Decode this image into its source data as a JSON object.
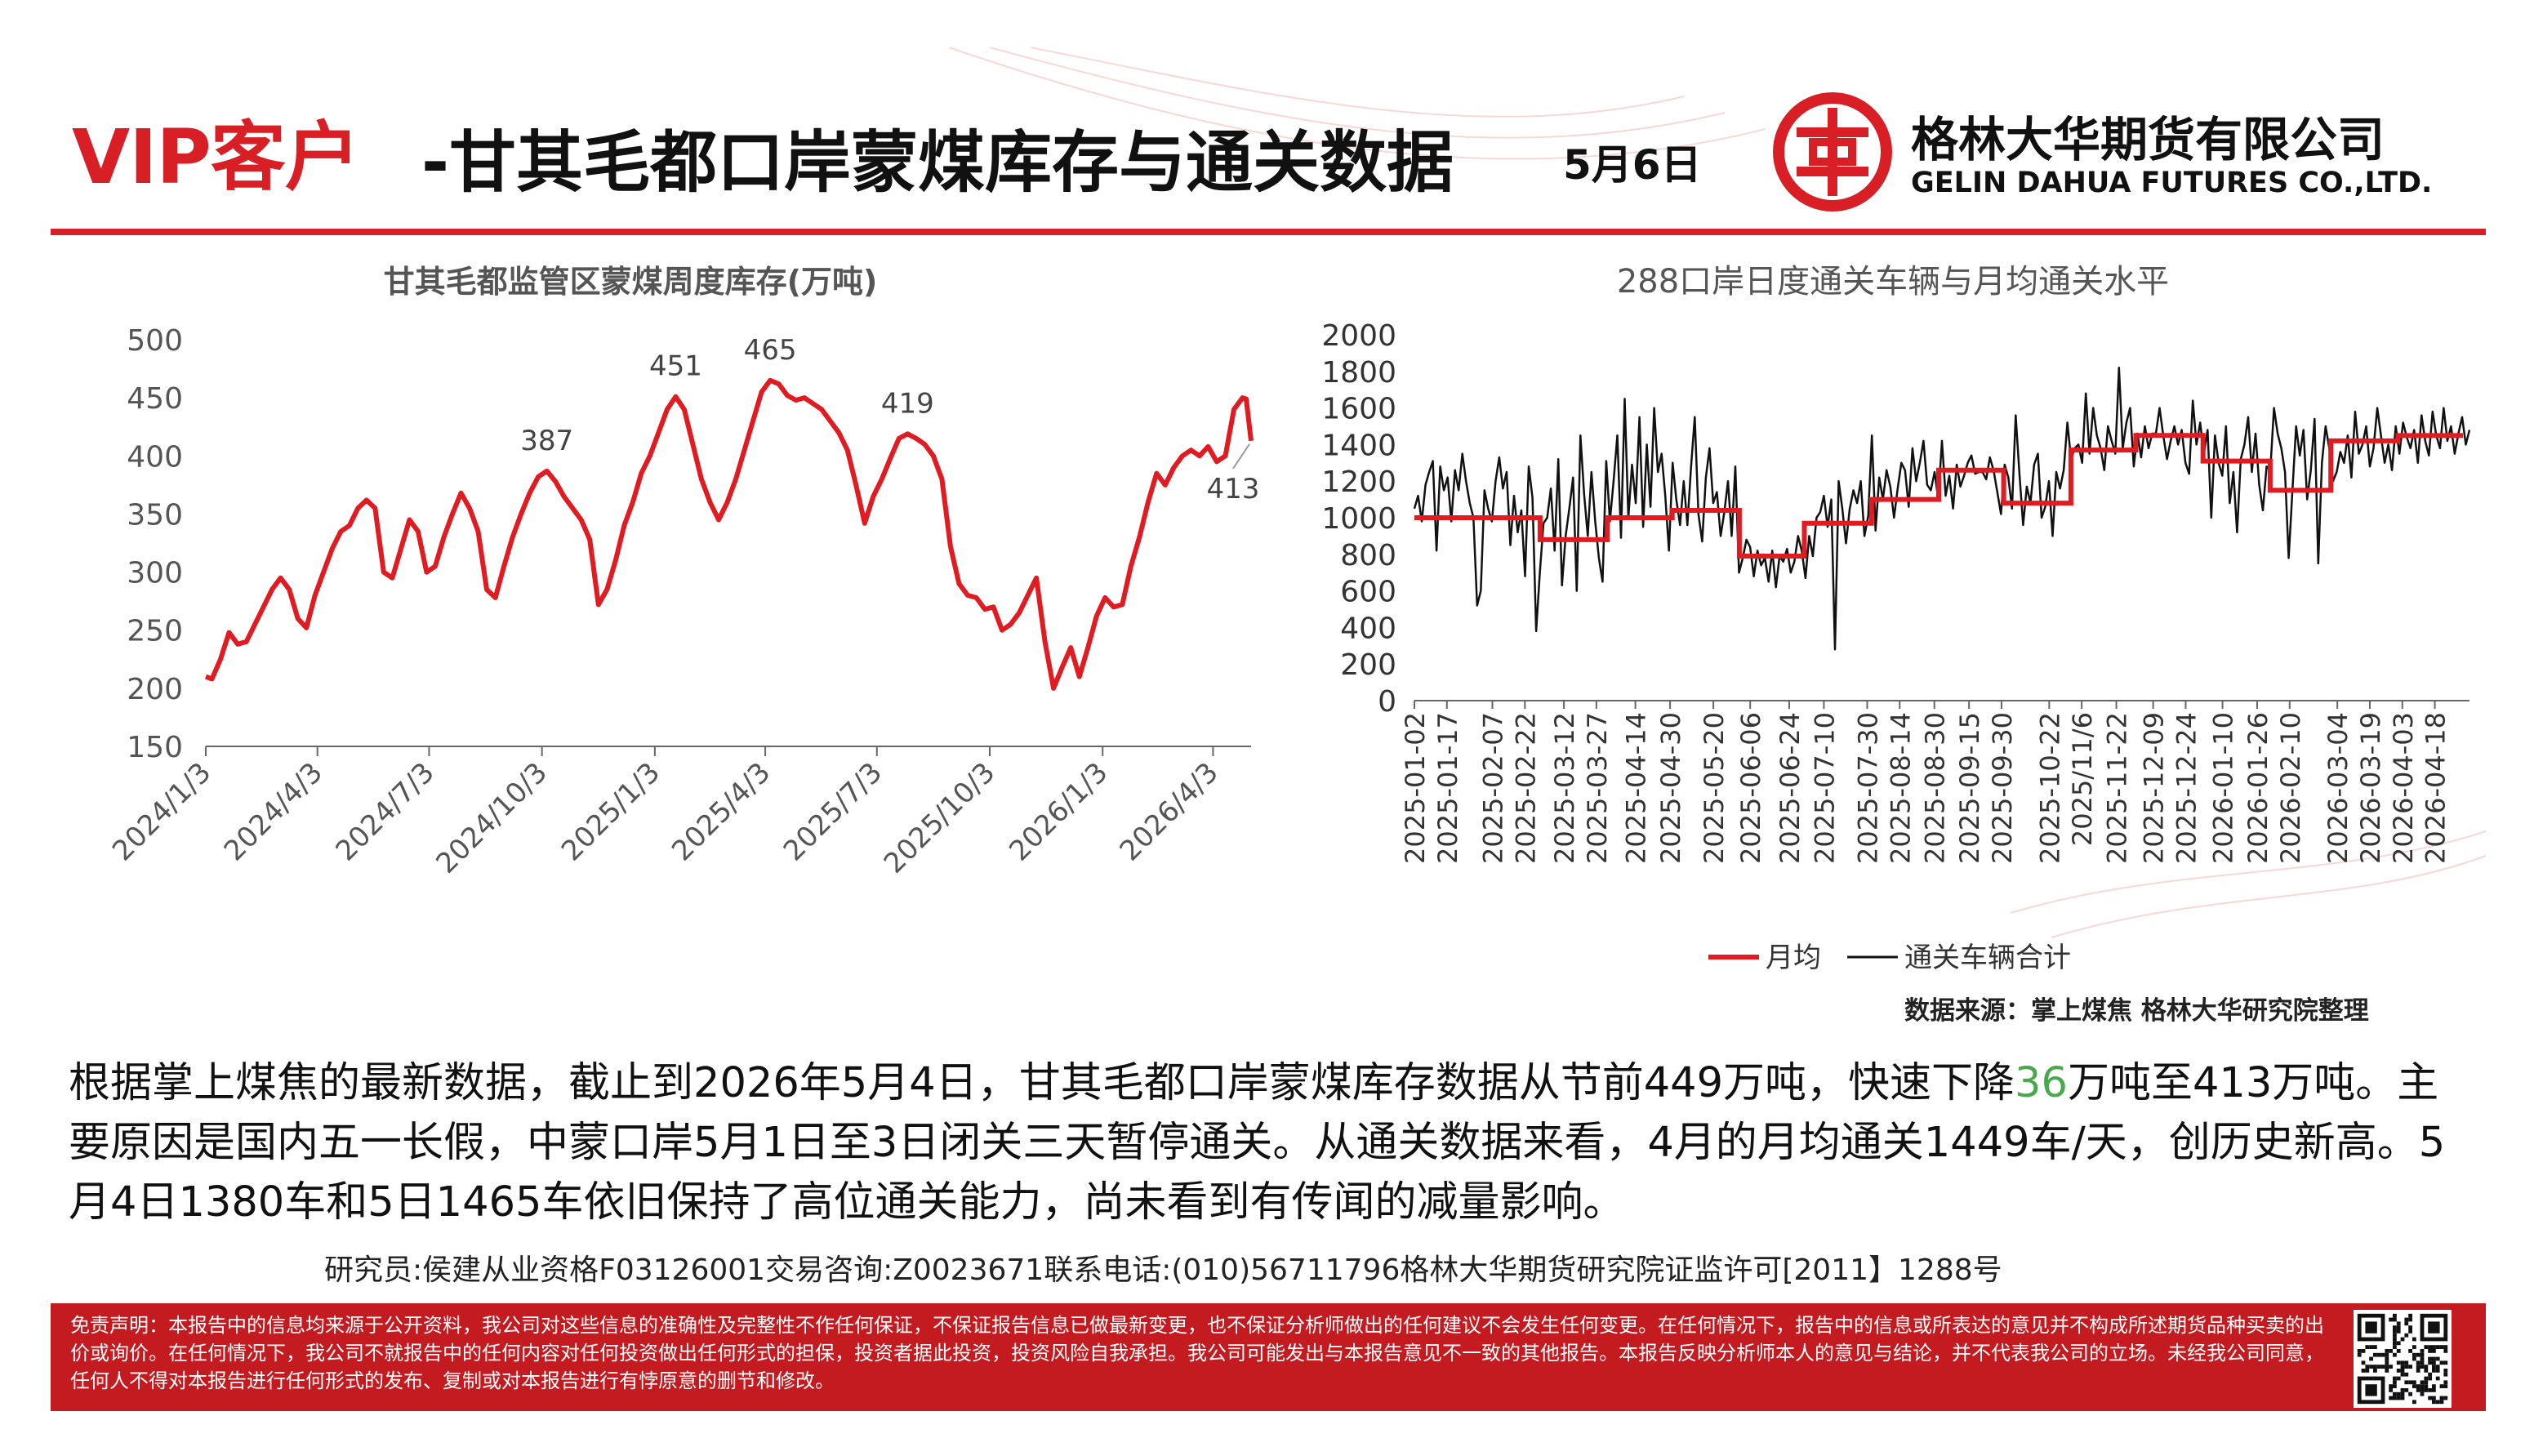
{
  "header": {
    "title_vip": "VIP客户",
    "title_main": "-甘其毛都口岸蒙煤库存与通关数据",
    "date": "5月6日",
    "company_cn": "格林大华期货有限公司",
    "company_en": "GELIN DAHUA FUTURES CO.,LTD.",
    "brand_color": "#d91f26"
  },
  "chart_data": [
    {
      "type": "line",
      "title": "甘其毛都监管区蒙煤周度库存(万吨)",
      "xlabel": "",
      "ylabel": "",
      "ylim": [
        150,
        500
      ],
      "yticks": [
        150,
        200,
        250,
        300,
        350,
        400,
        450,
        500
      ],
      "xlim": [
        "2024-01-03",
        "2026-05-04"
      ],
      "xticks": [
        "2024/1/3",
        "2024/4/3",
        "2024/7/3",
        "2024/10/3",
        "2025/1/3",
        "2025/4/3",
        "2025/7/3",
        "2025/10/3",
        "2026/1/3",
        "2026/4/3"
      ],
      "grid": false,
      "series": [
        {
          "color": "#e11b22",
          "points": [
            [
              "2024-01-03",
              210
            ],
            [
              "2024-01-08",
              208
            ],
            [
              "2024-01-15",
              225
            ],
            [
              "2024-01-22",
              248
            ],
            [
              "2024-01-29",
              238
            ],
            [
              "2024-02-05",
              240
            ],
            [
              "2024-02-12",
              255
            ],
            [
              "2024-02-19",
              270
            ],
            [
              "2024-02-26",
              285
            ],
            [
              "2024-03-04",
              295
            ],
            [
              "2024-03-11",
              285
            ],
            [
              "2024-03-18",
              260
            ],
            [
              "2024-03-25",
              252
            ],
            [
              "2024-04-01",
              280
            ],
            [
              "2024-04-08",
              300
            ],
            [
              "2024-04-15",
              320
            ],
            [
              "2024-04-22",
              335
            ],
            [
              "2024-04-29",
              340
            ],
            [
              "2024-05-06",
              355
            ],
            [
              "2024-05-13",
              362
            ],
            [
              "2024-05-20",
              355
            ],
            [
              "2024-05-27",
              300
            ],
            [
              "2024-06-03",
              295
            ],
            [
              "2024-06-10",
              320
            ],
            [
              "2024-06-17",
              345
            ],
            [
              "2024-06-24",
              335
            ],
            [
              "2024-07-01",
              300
            ],
            [
              "2024-07-08",
              305
            ],
            [
              "2024-07-15",
              330
            ],
            [
              "2024-07-22",
              350
            ],
            [
              "2024-07-29",
              368
            ],
            [
              "2024-08-05",
              355
            ],
            [
              "2024-08-12",
              335
            ],
            [
              "2024-08-19",
              285
            ],
            [
              "2024-08-26",
              278
            ],
            [
              "2024-09-02",
              305
            ],
            [
              "2024-09-09",
              330
            ],
            [
              "2024-09-16",
              350
            ],
            [
              "2024-09-23",
              368
            ],
            [
              "2024-09-30",
              382
            ],
            [
              "2024-10-07",
              387
            ],
            [
              "2024-10-14",
              378
            ],
            [
              "2024-10-21",
              365
            ],
            [
              "2024-10-28",
              355
            ],
            [
              "2024-11-04",
              345
            ],
            [
              "2024-11-11",
              328
            ],
            [
              "2024-11-18",
              272
            ],
            [
              "2024-11-25",
              285
            ],
            [
              "2024-12-02",
              310
            ],
            [
              "2024-12-09",
              340
            ],
            [
              "2024-12-16",
              360
            ],
            [
              "2024-12-23",
              385
            ],
            [
              "2024-12-30",
              400
            ],
            [
              "2025-01-06",
              420
            ],
            [
              "2025-01-13",
              440
            ],
            [
              "2025-01-20",
              451
            ],
            [
              "2025-01-27",
              440
            ],
            [
              "2025-02-03",
              410
            ],
            [
              "2025-02-10",
              380
            ],
            [
              "2025-02-17",
              360
            ],
            [
              "2025-02-24",
              345
            ],
            [
              "2025-03-03",
              360
            ],
            [
              "2025-03-10",
              380
            ],
            [
              "2025-03-17",
              405
            ],
            [
              "2025-03-24",
              430
            ],
            [
              "2025-03-31",
              455
            ],
            [
              "2025-04-07",
              465
            ],
            [
              "2025-04-14",
              462
            ],
            [
              "2025-04-21",
              452
            ],
            [
              "2025-04-28",
              448
            ],
            [
              "2025-05-05",
              450
            ],
            [
              "2025-05-12",
              445
            ],
            [
              "2025-05-19",
              440
            ],
            [
              "2025-05-26",
              430
            ],
            [
              "2025-06-02",
              420
            ],
            [
              "2025-06-09",
              405
            ],
            [
              "2025-06-16",
              375
            ],
            [
              "2025-06-23",
              342
            ],
            [
              "2025-06-30",
              365
            ],
            [
              "2025-07-07",
              380
            ],
            [
              "2025-07-14",
              398
            ],
            [
              "2025-07-21",
              415
            ],
            [
              "2025-07-28",
              419
            ],
            [
              "2025-08-04",
              415
            ],
            [
              "2025-08-11",
              410
            ],
            [
              "2025-08-18",
              400
            ],
            [
              "2025-08-25",
              380
            ],
            [
              "2025-09-01",
              322
            ],
            [
              "2025-09-08",
              290
            ],
            [
              "2025-09-15",
              280
            ],
            [
              "2025-09-22",
              278
            ],
            [
              "2025-09-29",
              268
            ],
            [
              "2025-10-06",
              270
            ],
            [
              "2025-10-13",
              250
            ],
            [
              "2025-10-20",
              255
            ],
            [
              "2025-10-27",
              265
            ],
            [
              "2025-11-03",
              280
            ],
            [
              "2025-11-10",
              295
            ],
            [
              "2025-11-17",
              240
            ],
            [
              "2025-11-24",
              200
            ],
            [
              "2025-12-01",
              218
            ],
            [
              "2025-12-08",
              235
            ],
            [
              "2025-12-15",
              210
            ],
            [
              "2025-12-22",
              235
            ],
            [
              "2025-12-29",
              262
            ],
            [
              "2026-01-05",
              278
            ],
            [
              "2026-01-12",
              270
            ],
            [
              "2026-01-19",
              272
            ],
            [
              "2026-01-26",
              305
            ],
            [
              "2026-02-02",
              330
            ],
            [
              "2026-02-09",
              360
            ],
            [
              "2026-02-16",
              385
            ],
            [
              "2026-02-23",
              375
            ],
            [
              "2026-03-02",
              390
            ],
            [
              "2026-03-09",
              400
            ],
            [
              "2026-03-16",
              405
            ],
            [
              "2026-03-23",
              400
            ],
            [
              "2026-03-30",
              408
            ],
            [
              "2026-04-06",
              395
            ],
            [
              "2026-04-13",
              400
            ],
            [
              "2026-04-20",
              440
            ],
            [
              "2026-04-27",
              450
            ],
            [
              "2026-04-30",
              449
            ],
            [
              "2026-05-04",
              413
            ]
          ]
        }
      ],
      "annotations": [
        {
          "x": "2024-10-07",
          "y": 387,
          "text": "387"
        },
        {
          "x": "2025-01-20",
          "y": 451,
          "text": "451"
        },
        {
          "x": "2025-04-07",
          "y": 465,
          "text": "465"
        },
        {
          "x": "2025-07-28",
          "y": 419,
          "text": "419"
        },
        {
          "x": "2026-05-04",
          "y": 413,
          "text": "413"
        }
      ]
    },
    {
      "type": "line",
      "title": "288口岸日度通关车辆与月均通关水平",
      "xlabel": "",
      "ylabel": "",
      "ylim": [
        0,
        2000
      ],
      "yticks": [
        0,
        200,
        400,
        600,
        800,
        1000,
        1200,
        1400,
        1600,
        1800,
        2000
      ],
      "xlim": [
        "2025-01-02",
        "2026-05-04"
      ],
      "xticks": [
        "2025-01-02",
        "2025-01-17",
        "2025-02-07",
        "2025-02-22",
        "2025-03-12",
        "2025-03-27",
        "2025-04-14",
        "2025-04-30",
        "2025-05-20",
        "2025-06-06",
        "2025-06-24",
        "2025-07-10",
        "2025-07-30",
        "2025-08-14",
        "2025-08-30",
        "2025-09-15",
        "2025-09-30",
        "2025-10-22",
        "2025/11/6",
        "2025-11-22",
        "2025-12-09",
        "2025-12-24",
        "2026-01-10",
        "2026-01-26",
        "2026-02-10",
        "2026-03-04",
        "2026-03-19",
        "2026-04-03",
        "2026-04-18"
      ],
      "legend": [
        "月均",
        "通关车辆合计"
      ],
      "legend_position": "bottom",
      "series": [
        {
          "name": "月均",
          "color": "#e11b22",
          "step": true,
          "points": [
            [
              "2025-01",
              1000
            ],
            [
              "2025-02",
              1000
            ],
            [
              "2025-03",
              880
            ],
            [
              "2025-04",
              1000
            ],
            [
              "2025-05",
              1040
            ],
            [
              "2025-06",
              790
            ],
            [
              "2025-07",
              970
            ],
            [
              "2025-08",
              1100
            ],
            [
              "2025-09",
              1260
            ],
            [
              "2025-10",
              1080
            ],
            [
              "2025-11",
              1370
            ],
            [
              "2025-12",
              1450
            ],
            [
              "2026-01",
              1310
            ],
            [
              "2026-02",
              1150
            ],
            [
              "2026-03",
              1420
            ],
            [
              "2026-04",
              1449
            ]
          ]
        },
        {
          "name": "通关车辆合计",
          "color": "#111111",
          "daily": [
            1050,
            1120,
            980,
            1180,
            1250,
            1310,
            820,
            1280,
            1150,
            1220,
            980,
            1260,
            1150,
            1350,
            1200,
            1080,
            1000,
            520,
            600,
            1150,
            1050,
            980,
            1200,
            1330,
            1160,
            1250,
            850,
            1120,
            920,
            1040,
            680,
            1280,
            1110,
            380,
            700,
            970,
            1000,
            1160,
            820,
            1320,
            630,
            900,
            1050,
            1220,
            600,
            1450,
            1130,
            900,
            1250,
            980,
            780,
            650,
            1310,
            980,
            1200,
            1450,
            890,
            1650,
            1000,
            1290,
            1080,
            1550,
            950,
            1400,
            1060,
            1600,
            1250,
            1350,
            1120,
            820,
            1300,
            1100,
            960,
            1200,
            960,
            1280,
            1550,
            1020,
            870,
            1220,
            1380,
            1080,
            1140,
            900,
            1030,
            1200,
            900,
            1280,
            700,
            780,
            880,
            840,
            680,
            820,
            740,
            780,
            650,
            820,
            620,
            790,
            760,
            830,
            700,
            760,
            900,
            820,
            670,
            900,
            790,
            1000,
            1030,
            1120,
            950,
            1100,
            280,
            1200,
            1050,
            860,
            1050,
            1150,
            1080,
            1200,
            900,
            1010,
            1450,
            930,
            1220,
            1100,
            1260,
            1170,
            1000,
            1160,
            1300,
            1260,
            1060,
            1380,
            1200,
            1300,
            1420,
            1180,
            1150,
            1250,
            1100,
            1420,
            1120,
            1230,
            1050,
            1290,
            1170,
            1230,
            1300,
            1340,
            1240,
            1250,
            1250,
            1210,
            1330,
            1260,
            1140,
            1020,
            1290,
            1220,
            1050,
            1560,
            1240,
            960,
            1170,
            1080,
            1290,
            1350,
            1000,
            1060,
            1200,
            900,
            1250,
            1160,
            1260,
            1520,
            1320,
            1380,
            1400,
            1300,
            1680,
            1350,
            1600,
            1450,
            1380,
            1260,
            1500,
            1420,
            1350,
            1820,
            1380,
            1520,
            1600,
            1280,
            1460,
            1330,
            1500,
            1380,
            1460,
            1460,
            1600,
            1450,
            1320,
            1420,
            1500,
            1400,
            1480,
            1300,
            1240,
            1640,
            1400,
            1520,
            1350,
            1480,
            1000,
            1450,
            1300,
            1230,
            1500,
            1080,
            1250,
            920,
            1320,
            1400,
            1550,
            1250,
            1460,
            1180,
            1040,
            1280,
            1260,
            1600,
            1460,
            1380,
            1250,
            780,
            1150,
            1500,
            1340,
            1480,
            1100,
            1260,
            1540,
            750,
            1300,
            1500,
            1380,
            1200,
            1250,
            1360,
            1300,
            1450,
            1220,
            1580,
            1350,
            1400,
            1500,
            1280,
            1380,
            1600,
            1450,
            1300,
            1400,
            1260,
            1500,
            1350,
            1520,
            1440,
            1380,
            1480,
            1300,
            1560,
            1420,
            1340,
            1580,
            1450,
            1380,
            1600,
            1420,
            1500,
            1350,
            1460,
            1550,
            1400,
            1480
          ]
        }
      ]
    }
  ],
  "source_note": "数据来源：掌上煤焦 格林大华研究院整理",
  "body": {
    "p1": "根据掌上煤焦的最新数据，截止到2026年5月4日，甘其毛都口岸蒙煤库存数据从节前449万吨，快速下降",
    "highlight": "36",
    "p2": "万吨至413万吨。主要原因是国内五一长假，中蒙口岸5月1日至3日闭关三天暂停通关。从通关数据来看，4月的月均通关1449车/天，创历史新高。5月4日1380车和5日1465车依旧保持了高位通关能力，尚未看到有传闻的减量影响。"
  },
  "researcher": "研究员:侯建从业资格F03126001交易咨询:Z0023671联系电话:(010)56711796格林大华期货研究院证监许可[2011】1288号",
  "disclaimer": "免责声明：本报告中的信息均来源于公开资料，我公司对这些信息的准确性及完整性不作任何保证，不保证报告信息已做最新变更，也不保证分析师做出的任何建议不会发生任何变更。在任何情况下，报告中的信息或所表达的意见并不构成所述期货品种买卖的出价或询价。在任何情况下，我公司不就报告中的任何内容对任何投资做出任何形式的担保，投资者据此投资，投资风险自我承担。我公司可能发出与本报告意见不一致的其他报告。本报告反映分析师本人的意见与结论，并不代表我公司的立场。未经我公司同意，任何人不得对本报告进行任何形式的发布、复制或对本报告进行有悖原意的删节和修改。"
}
